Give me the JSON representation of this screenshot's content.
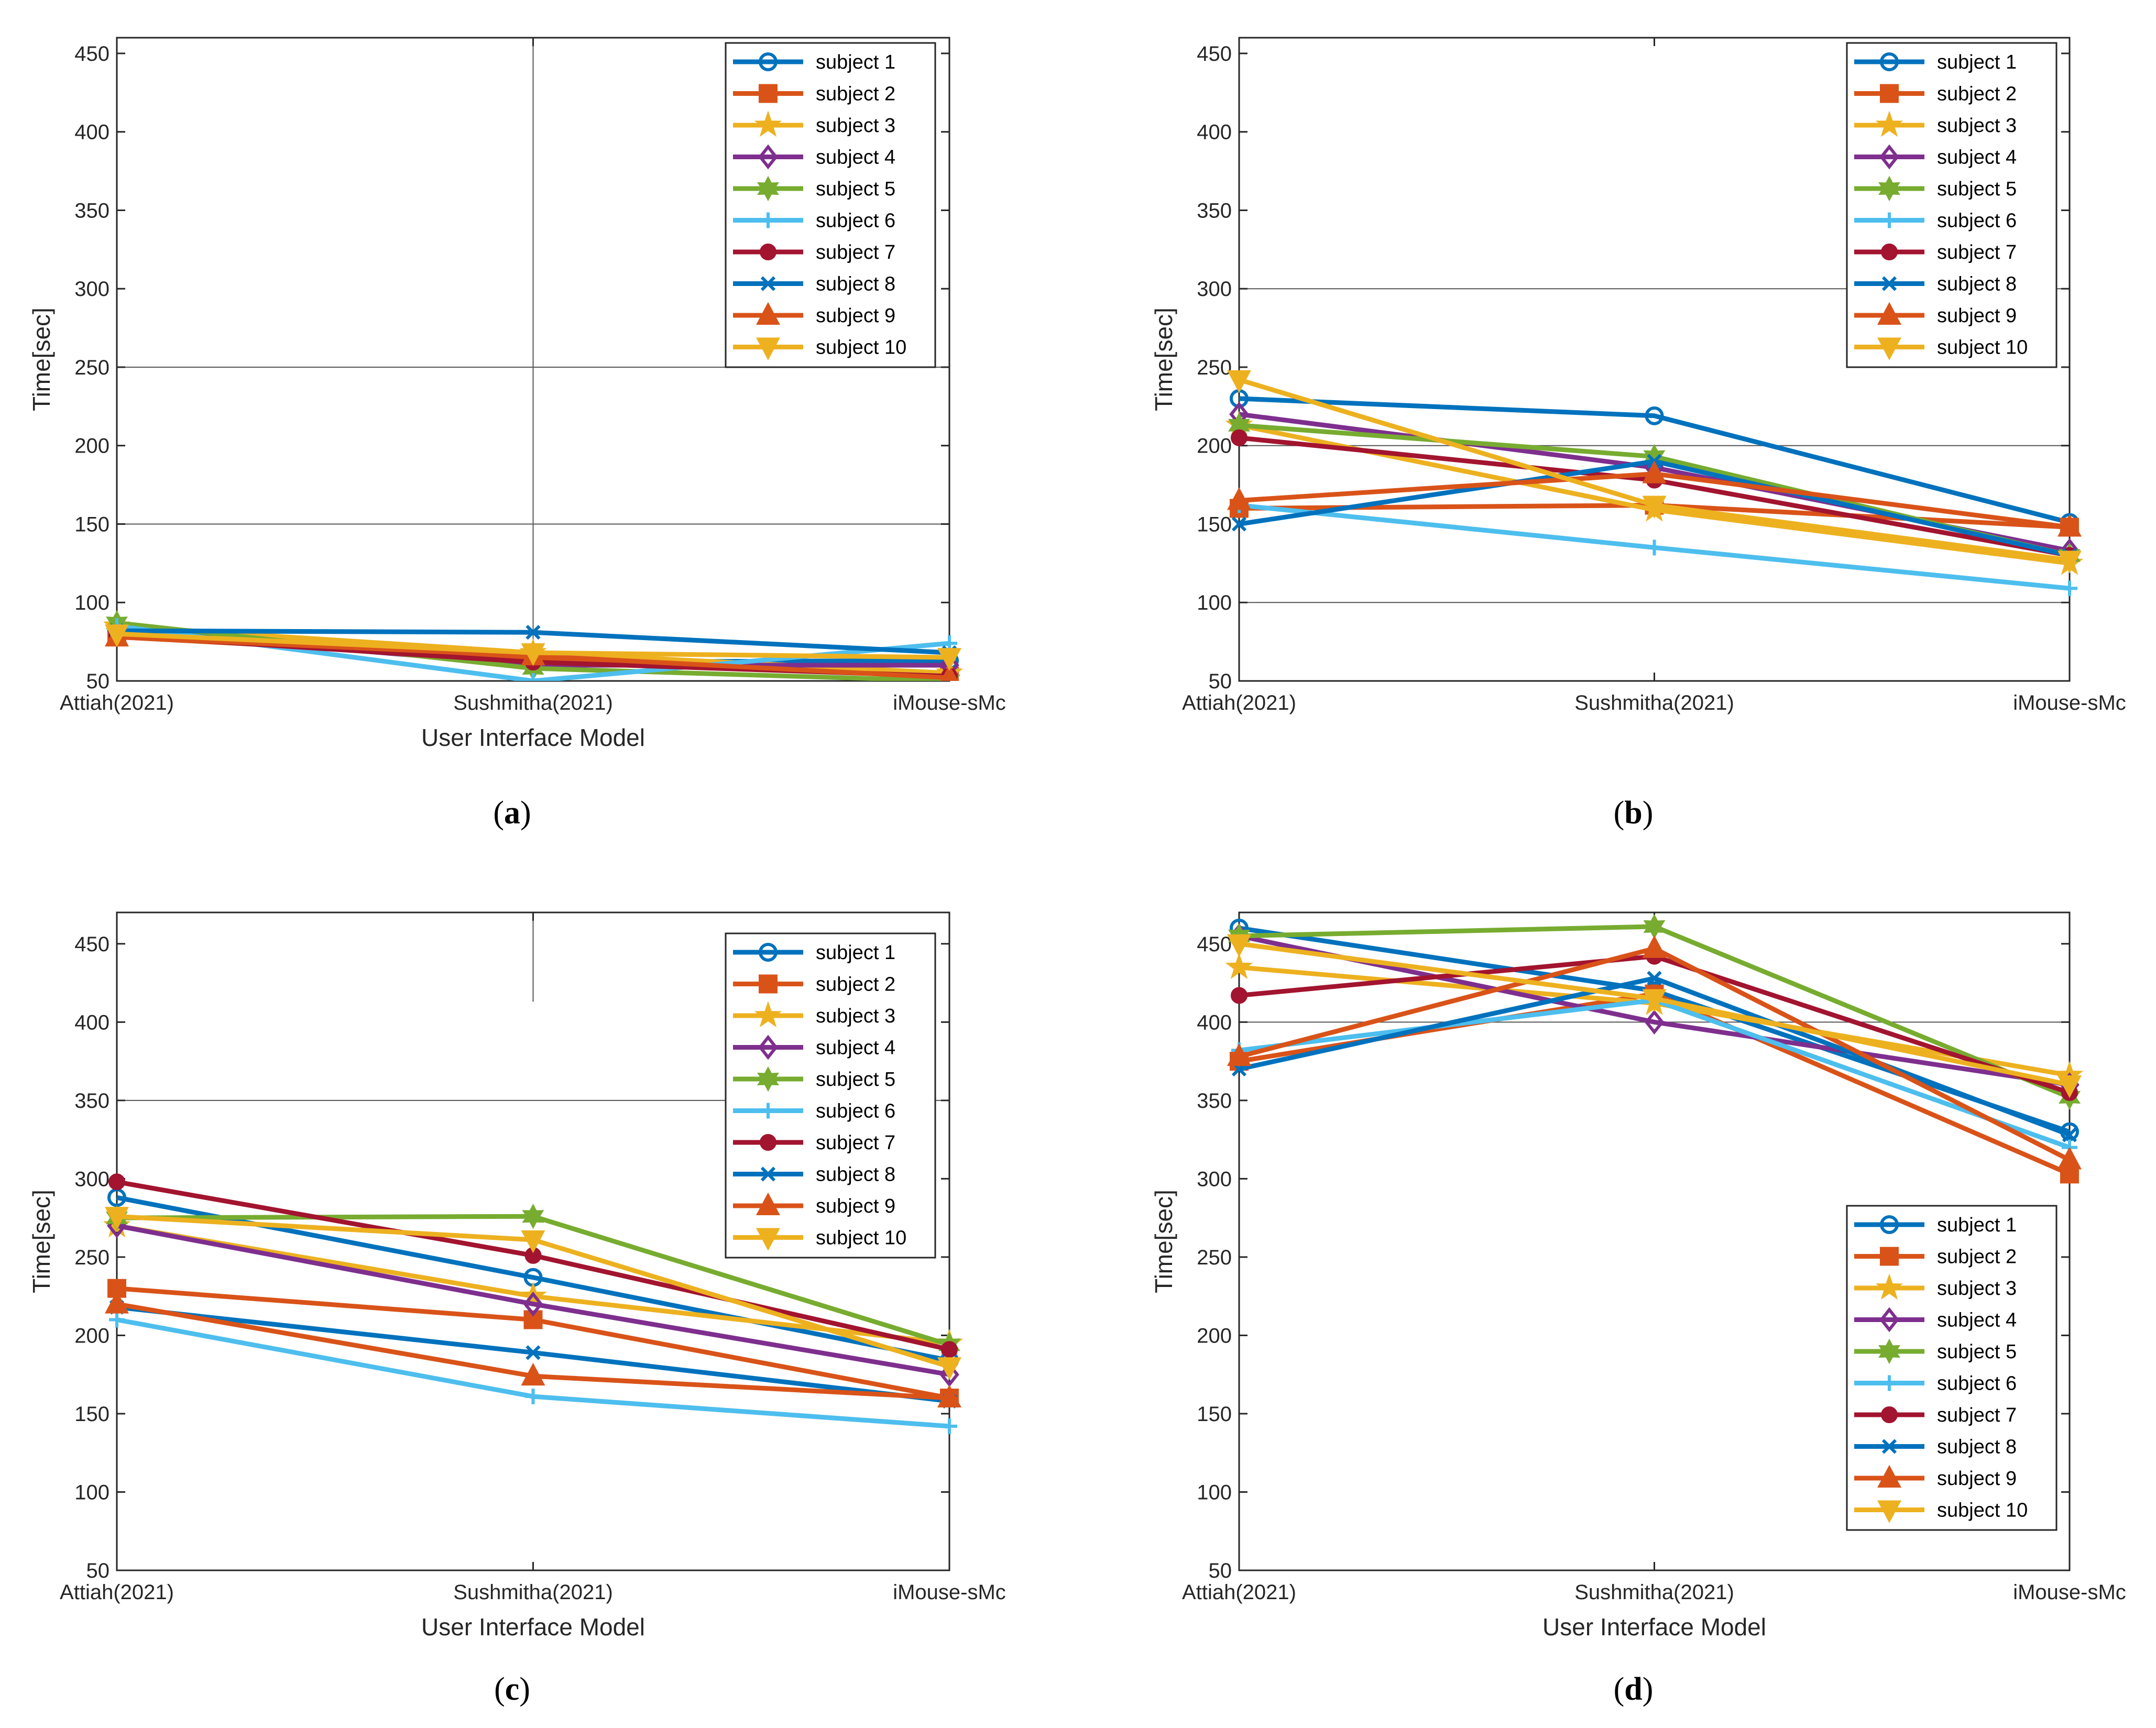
{
  "figure": {
    "panel_labels": [
      "(a)",
      "(b)",
      "(c)",
      "(d)"
    ]
  },
  "colors": [
    "#0072BD",
    "#D95319",
    "#EDB120",
    "#7E2F8E",
    "#77AC30",
    "#4DBEEE",
    "#A2142F",
    "#0072BD",
    "#D95319",
    "#EDB120"
  ],
  "markers": [
    "circle",
    "square",
    "star",
    "diamond",
    "hexagram",
    "plus",
    "dot",
    "x",
    "triangle-up",
    "triangle-down"
  ],
  "chart_data": [
    {
      "panel": "(a)",
      "type": "line",
      "categories": [
        "Attiah(2021)",
        "Sushmitha(2021)",
        "iMouse-sMc"
      ],
      "xlabel": "User Interface Model",
      "ylabel": "Time[sec]",
      "ylim": [
        50,
        460
      ],
      "yticks": [
        50,
        100,
        150,
        200,
        250,
        300,
        350,
        400,
        450
      ],
      "grid": "partial",
      "legend": "top-right",
      "series": [
        {
          "name": "subject 1",
          "values": [
            83,
            62,
            63
          ]
        },
        {
          "name": "subject 2",
          "values": [
            78,
            64,
            53
          ]
        },
        {
          "name": "subject 3",
          "values": [
            85,
            68,
            55
          ]
        },
        {
          "name": "subject 4",
          "values": [
            82,
            60,
            60
          ]
        },
        {
          "name": "subject 5",
          "values": [
            87,
            58,
            50
          ]
        },
        {
          "name": "subject 6",
          "values": [
            85,
            50,
            74
          ]
        },
        {
          "name": "subject 7",
          "values": [
            79,
            62,
            53
          ]
        },
        {
          "name": "subject 8",
          "values": [
            82,
            81,
            68
          ]
        },
        {
          "name": "subject 9",
          "values": [
            78,
            66,
            52
          ]
        },
        {
          "name": "subject 10",
          "values": [
            80,
            68,
            65
          ]
        }
      ]
    },
    {
      "panel": "(b)",
      "type": "line",
      "categories": [
        "Attiah(2021)",
        "Sushmitha(2021)",
        "iMouse-sMc"
      ],
      "xlabel": "",
      "ylabel": "Time[sec]",
      "ylim": [
        50,
        460
      ],
      "yticks": [
        50,
        100,
        150,
        200,
        250,
        300,
        350,
        400,
        450
      ],
      "grid": "partial",
      "legend": "top-right",
      "series": [
        {
          "name": "subject 1",
          "values": [
            230,
            219,
            151
          ]
        },
        {
          "name": "subject 2",
          "values": [
            160,
            162,
            148
          ]
        },
        {
          "name": "subject 3",
          "values": [
            213,
            159,
            125
          ]
        },
        {
          "name": "subject 4",
          "values": [
            220,
            186,
            133
          ]
        },
        {
          "name": "subject 5",
          "values": [
            213,
            193,
            130
          ]
        },
        {
          "name": "subject 6",
          "values": [
            162,
            135,
            109
          ]
        },
        {
          "name": "subject 7",
          "values": [
            205,
            178,
            130
          ]
        },
        {
          "name": "subject 8",
          "values": [
            150,
            190,
            130
          ]
        },
        {
          "name": "subject 9",
          "values": [
            165,
            182,
            148
          ]
        },
        {
          "name": "subject 10",
          "values": [
            242,
            162,
            127
          ]
        }
      ]
    },
    {
      "panel": "(c)",
      "type": "line",
      "categories": [
        "Attiah(2021)",
        "Sushmitha(2021)",
        "iMouse-sMc"
      ],
      "xlabel": "User Interface Model",
      "ylabel": "Time[sec]",
      "ylim": [
        50,
        470
      ],
      "yticks": [
        50,
        100,
        150,
        200,
        250,
        300,
        350,
        400,
        450
      ],
      "grid": "partial",
      "legend": "top-right",
      "series": [
        {
          "name": "subject 1",
          "values": [
            288,
            237,
            184
          ]
        },
        {
          "name": "subject 2",
          "values": [
            230,
            210,
            160
          ]
        },
        {
          "name": "subject 3",
          "values": [
            270,
            225,
            195
          ]
        },
        {
          "name": "subject 4",
          "values": [
            270,
            220,
            175
          ]
        },
        {
          "name": "subject 5",
          "values": [
            275,
            276,
            194
          ]
        },
        {
          "name": "subject 6",
          "values": [
            210,
            161,
            142
          ]
        },
        {
          "name": "subject 7",
          "values": [
            298,
            251,
            191
          ]
        },
        {
          "name": "subject 8",
          "values": [
            218,
            189,
            158
          ]
        },
        {
          "name": "subject 9",
          "values": [
            220,
            174,
            160
          ]
        },
        {
          "name": "subject 10",
          "values": [
            276,
            261,
            180
          ]
        }
      ]
    },
    {
      "panel": "(d)",
      "type": "line",
      "categories": [
        "Attiah(2021)",
        "Sushmitha(2021)",
        "iMouse-sMc"
      ],
      "xlabel": "User Interface Model",
      "ylabel": "Time[sec]",
      "ylim": [
        50,
        470
      ],
      "yticks": [
        50,
        100,
        150,
        200,
        250,
        300,
        350,
        400,
        450
      ],
      "grid": "partial",
      "legend": "bottom-right",
      "series": [
        {
          "name": "subject 1",
          "values": [
            460,
            420,
            330
          ]
        },
        {
          "name": "subject 2",
          "values": [
            375,
            418,
            303
          ]
        },
        {
          "name": "subject 3",
          "values": [
            435,
            412,
            366
          ]
        },
        {
          "name": "subject 4",
          "values": [
            455,
            400,
            360
          ]
        },
        {
          "name": "subject 5",
          "values": [
            455,
            461,
            352
          ]
        },
        {
          "name": "subject 6",
          "values": [
            382,
            414,
            320
          ]
        },
        {
          "name": "subject 7",
          "values": [
            417,
            442,
            355
          ]
        },
        {
          "name": "subject 8",
          "values": [
            370,
            428,
            328
          ]
        },
        {
          "name": "subject 9",
          "values": [
            378,
            447,
            312
          ]
        },
        {
          "name": "subject 10",
          "values": [
            450,
            415,
            360
          ]
        }
      ]
    }
  ]
}
